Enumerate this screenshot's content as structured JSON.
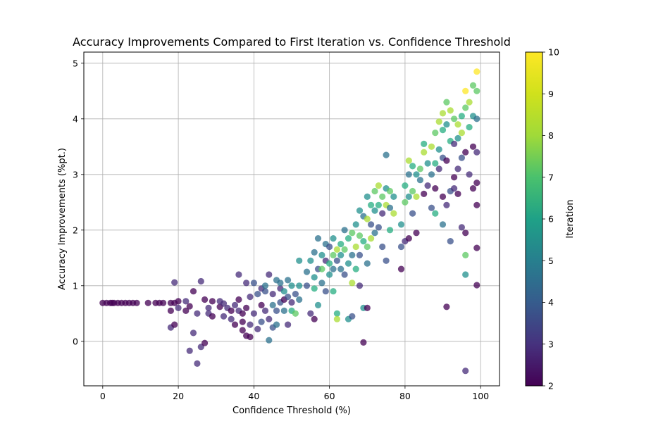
{
  "chart_data": {
    "type": "scatter",
    "title": "Accuracy Improvements Compared to First Iteration vs. Confidence Threshold",
    "xlabel": "Confidence Threshold (%)",
    "ylabel": "Accuracy Improvements (%pt.)",
    "xlim": [
      -5,
      105
    ],
    "ylim": [
      -0.8,
      5.2
    ],
    "xticks": [
      "0",
      "20",
      "40",
      "60",
      "80",
      "100"
    ],
    "yticks": [
      "0",
      "1",
      "2",
      "3",
      "4",
      "5"
    ],
    "grid": true,
    "colormap": "viridis",
    "colorbar": {
      "label": "Iteration",
      "range": [
        2,
        10
      ],
      "ticks": [
        "2",
        "3",
        "4",
        "5",
        "6",
        "7",
        "8",
        "9",
        "10"
      ]
    },
    "points": [
      [
        0,
        0.69,
        2
      ],
      [
        1,
        0.69,
        2
      ],
      [
        2,
        0.69,
        2
      ],
      [
        2.5,
        0.69,
        2
      ],
      [
        3,
        0.69,
        2
      ],
      [
        4,
        0.69,
        2
      ],
      [
        5,
        0.69,
        2
      ],
      [
        6,
        0.69,
        2
      ],
      [
        7,
        0.69,
        2
      ],
      [
        8,
        0.69,
        2
      ],
      [
        9,
        0.69,
        2
      ],
      [
        12,
        0.69,
        2
      ],
      [
        14,
        0.69,
        2
      ],
      [
        15,
        0.69,
        2
      ],
      [
        16,
        0.69,
        2
      ],
      [
        18,
        0.69,
        2
      ],
      [
        19,
        0.69,
        2
      ],
      [
        20,
        0.72,
        2
      ],
      [
        18,
        0.25,
        3
      ],
      [
        19,
        0.3,
        2
      ],
      [
        18,
        0.55,
        2
      ],
      [
        19,
        1.06,
        3
      ],
      [
        20,
        0.6,
        3
      ],
      [
        22,
        0.55,
        2
      ],
      [
        22,
        0.72,
        3
      ],
      [
        23,
        0.63,
        2
      ],
      [
        23,
        -0.17,
        3
      ],
      [
        24,
        0.15,
        3
      ],
      [
        24,
        0.9,
        2
      ],
      [
        25,
        0.5,
        3
      ],
      [
        25,
        -0.4,
        3
      ],
      [
        26,
        -0.1,
        3
      ],
      [
        26,
        1.08,
        3
      ],
      [
        27,
        -0.03,
        2
      ],
      [
        27,
        0.75,
        2
      ],
      [
        28,
        0.6,
        3
      ],
      [
        28,
        0.5,
        3
      ],
      [
        29,
        0.72,
        2
      ],
      [
        29,
        0.45,
        2
      ],
      [
        31,
        0.62,
        2
      ],
      [
        31,
        0.72,
        3
      ],
      [
        32,
        0.45,
        3
      ],
      [
        32,
        0.68,
        3
      ],
      [
        33,
        0.6,
        3
      ],
      [
        34,
        0.55,
        2
      ],
      [
        34,
        0.4,
        3
      ],
      [
        35,
        0.65,
        3
      ],
      [
        35,
        0.3,
        2
      ],
      [
        36,
        1.2,
        3
      ],
      [
        36,
        0.55,
        3
      ],
      [
        36,
        0.75,
        2
      ],
      [
        37,
        0.2,
        2
      ],
      [
        37,
        0.35,
        2
      ],
      [
        37,
        0.5,
        2
      ],
      [
        38,
        0.1,
        2
      ],
      [
        38,
        1.05,
        3
      ],
      [
        38,
        0.6,
        2
      ],
      [
        39,
        0.08,
        2
      ],
      [
        39,
        0.3,
        3
      ],
      [
        39,
        0.8,
        3
      ],
      [
        40,
        1.05,
        4
      ],
      [
        40,
        0.5,
        3
      ],
      [
        41,
        0.22,
        3
      ],
      [
        41,
        0.85,
        4
      ],
      [
        42,
        0.65,
        2
      ],
      [
        42,
        0.95,
        3
      ],
      [
        42,
        0.35,
        4
      ],
      [
        43,
        0.55,
        3
      ],
      [
        43,
        0.9,
        4
      ],
      [
        43,
        1.0,
        5
      ],
      [
        44,
        1.2,
        3
      ],
      [
        44,
        0.4,
        3
      ],
      [
        44,
        0.02,
        5
      ],
      [
        45,
        0.25,
        4
      ],
      [
        45,
        0.65,
        5
      ],
      [
        45,
        0.85,
        3
      ],
      [
        46,
        0.55,
        4
      ],
      [
        46,
        1.1,
        5
      ],
      [
        46,
        0.3,
        5
      ],
      [
        47,
        0.7,
        4
      ],
      [
        47,
        0.95,
        3
      ],
      [
        47,
        1.05,
        5
      ],
      [
        48,
        0.75,
        2
      ],
      [
        48,
        0.9,
        6
      ],
      [
        48,
        0.55,
        5
      ],
      [
        49,
        0.8,
        4
      ],
      [
        49,
        0.3,
        3
      ],
      [
        49,
        1.1,
        5
      ],
      [
        50,
        0.7,
        3
      ],
      [
        50,
        1.0,
        6
      ],
      [
        50,
        0.55,
        7
      ],
      [
        51,
        0.85,
        4
      ],
      [
        51,
        0.5,
        8
      ],
      [
        52,
        1.0,
        6
      ],
      [
        52,
        0.75,
        5
      ],
      [
        52,
        1.45,
        6
      ],
      [
        54,
        1.25,
        5
      ],
      [
        54,
        1.0,
        4
      ],
      [
        55,
        1.45,
        6
      ],
      [
        55,
        0.5,
        3
      ],
      [
        56,
        1.15,
        6
      ],
      [
        56,
        1.6,
        5
      ],
      [
        56,
        0.4,
        2
      ],
      [
        56,
        0.95,
        7
      ],
      [
        57,
        1.3,
        4
      ],
      [
        57,
        1.85,
        5
      ],
      [
        57,
        0.65,
        6
      ],
      [
        58,
        1.55,
        6
      ],
      [
        58,
        1.05,
        5
      ],
      [
        58,
        1.3,
        8
      ],
      [
        59,
        1.75,
        5
      ],
      [
        59,
        1.45,
        3
      ],
      [
        59,
        0.9,
        4
      ],
      [
        60,
        1.4,
        7
      ],
      [
        60,
        1.7,
        4
      ],
      [
        60,
        1.2,
        6
      ],
      [
        61,
        1.55,
        8
      ],
      [
        61,
        1.85,
        6
      ],
      [
        61,
        1.3,
        5
      ],
      [
        61,
        0.9,
        7
      ],
      [
        62,
        1.65,
        9
      ],
      [
        62,
        1.45,
        4
      ],
      [
        62,
        0.5,
        7
      ],
      [
        62,
        0.4,
        9
      ],
      [
        63,
        1.75,
        7
      ],
      [
        63,
        1.3,
        5
      ],
      [
        63,
        1.55,
        6
      ],
      [
        64,
        2.0,
        5
      ],
      [
        64,
        1.2,
        4
      ],
      [
        64,
        1.65,
        8
      ],
      [
        65,
        1.85,
        7
      ],
      [
        65,
        1.4,
        6
      ],
      [
        65,
        0.4,
        6
      ],
      [
        66,
        1.95,
        8
      ],
      [
        66,
        1.55,
        5
      ],
      [
        66,
        1.05,
        9
      ],
      [
        66,
        0.45,
        4
      ],
      [
        67,
        2.1,
        6
      ],
      [
        67,
        1.7,
        9
      ],
      [
        67,
        1.3,
        7
      ],
      [
        68,
        2.35,
        6
      ],
      [
        68,
        1.9,
        8
      ],
      [
        68,
        1.55,
        4
      ],
      [
        68,
        1.0,
        3
      ],
      [
        69,
        2.25,
        5
      ],
      [
        69,
        1.8,
        7
      ],
      [
        69,
        0.6,
        6
      ],
      [
        69,
        -0.02,
        2
      ],
      [
        70,
        2.6,
        6
      ],
      [
        70,
        2.2,
        9
      ],
      [
        70,
        1.7,
        8
      ],
      [
        70,
        1.4,
        5
      ],
      [
        70,
        0.6,
        2
      ],
      [
        71,
        2.45,
        7
      ],
      [
        71,
        2.1,
        4
      ],
      [
        71,
        1.85,
        9
      ],
      [
        72,
        2.7,
        8
      ],
      [
        72,
        2.35,
        6
      ],
      [
        72,
        1.95,
        5
      ],
      [
        73,
        2.8,
        9
      ],
      [
        73,
        2.45,
        7
      ],
      [
        73,
        2.05,
        4
      ],
      [
        74,
        2.6,
        8
      ],
      [
        74,
        2.3,
        3
      ],
      [
        74,
        1.7,
        4
      ],
      [
        75,
        3.35,
        5
      ],
      [
        75,
        2.75,
        6
      ],
      [
        75,
        2.45,
        9
      ],
      [
        75,
        1.45,
        4
      ],
      [
        76,
        2.7,
        8
      ],
      [
        76,
        2.4,
        5
      ],
      [
        76,
        2.0,
        7
      ],
      [
        77,
        2.6,
        6
      ],
      [
        77,
        2.3,
        9
      ],
      [
        79,
        2.1,
        6
      ],
      [
        79,
        1.7,
        4
      ],
      [
        79,
        1.3,
        2
      ],
      [
        80,
        2.8,
        7
      ],
      [
        80,
        2.5,
        8
      ],
      [
        80,
        1.8,
        3
      ],
      [
        81,
        3.25,
        9
      ],
      [
        81,
        3.0,
        5
      ],
      [
        81,
        2.6,
        6
      ],
      [
        81,
        1.85,
        2
      ],
      [
        82,
        3.15,
        7
      ],
      [
        82,
        2.7,
        8
      ],
      [
        82,
        2.3,
        4
      ],
      [
        83,
        3.0,
        6
      ],
      [
        83,
        2.6,
        9
      ],
      [
        83,
        1.95,
        2
      ],
      [
        84,
        2.9,
        5
      ],
      [
        84,
        3.1,
        8
      ],
      [
        85,
        3.4,
        9
      ],
      [
        85,
        3.55,
        7
      ],
      [
        85,
        2.65,
        2
      ],
      [
        86,
        3.2,
        6
      ],
      [
        86,
        2.8,
        3
      ],
      [
        87,
        3.5,
        9
      ],
      [
        87,
        3.0,
        5
      ],
      [
        87,
        2.4,
        4
      ],
      [
        88,
        3.75,
        8
      ],
      [
        88,
        3.2,
        7
      ],
      [
        88,
        2.75,
        2
      ],
      [
        88,
        2.3,
        7
      ],
      [
        89,
        3.95,
        9
      ],
      [
        89,
        3.45,
        6
      ],
      [
        89,
        3.1,
        3
      ],
      [
        90,
        4.1,
        9
      ],
      [
        90,
        3.8,
        7
      ],
      [
        90,
        3.3,
        4
      ],
      [
        90,
        2.6,
        2
      ],
      [
        90,
        2.1,
        5
      ],
      [
        91,
        4.3,
        8
      ],
      [
        91,
        3.9,
        6
      ],
      [
        91,
        3.25,
        2
      ],
      [
        91,
        2.45,
        3
      ],
      [
        91,
        0.62,
        2
      ],
      [
        92,
        4.15,
        9
      ],
      [
        92,
        3.6,
        7
      ],
      [
        92,
        2.7,
        4
      ],
      [
        92,
        1.8,
        4
      ],
      [
        93,
        4.0,
        8
      ],
      [
        93,
        3.55,
        3
      ],
      [
        93,
        2.95,
        2
      ],
      [
        93,
        2.75,
        3
      ],
      [
        94,
        3.9,
        9
      ],
      [
        94,
        3.65,
        6
      ],
      [
        94,
        3.1,
        3
      ],
      [
        94,
        2.65,
        2
      ],
      [
        95,
        4.05,
        7
      ],
      [
        95,
        3.75,
        9
      ],
      [
        95,
        3.3,
        4
      ],
      [
        95,
        2.05,
        3
      ],
      [
        96,
        4.5,
        10
      ],
      [
        96,
        4.2,
        8
      ],
      [
        96,
        3.4,
        2
      ],
      [
        96,
        1.95,
        2
      ],
      [
        96,
        1.55,
        8
      ],
      [
        96,
        1.2,
        6
      ],
      [
        96,
        -0.53,
        3
      ],
      [
        97,
        4.3,
        9
      ],
      [
        97,
        3.85,
        7
      ],
      [
        97,
        3.0,
        3
      ],
      [
        98,
        4.6,
        8
      ],
      [
        98,
        4.05,
        6
      ],
      [
        98,
        3.5,
        2
      ],
      [
        98,
        2.75,
        2
      ],
      [
        99,
        4.85,
        10
      ],
      [
        99,
        4.5,
        8
      ],
      [
        99,
        4.0,
        5
      ],
      [
        99,
        3.4,
        3
      ],
      [
        99,
        2.85,
        2
      ],
      [
        99,
        2.45,
        2
      ],
      [
        99,
        1.68,
        2
      ],
      [
        99,
        1.01,
        2
      ]
    ]
  }
}
